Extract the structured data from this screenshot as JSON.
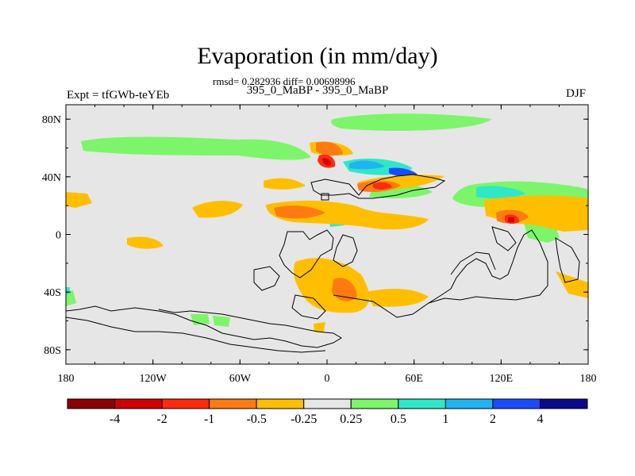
{
  "chart_data": {
    "type": "map",
    "title": "Evaporation (in mm/day)",
    "stats_text": "rmsd= 0.282936 diff= 0.00698996",
    "subtitle": "395_0_MaBP - 395_0_MaBP",
    "left_label": "Expt = tfGWb-teYEb",
    "right_label": "DJF",
    "x_ticks": [
      "180",
      "120W",
      "60W",
      "0",
      "60E",
      "120E",
      "180"
    ],
    "y_ticks": [
      "80N",
      "40N",
      "0",
      "40S",
      "80S"
    ],
    "colorbar": {
      "levels": [
        "-4",
        "-2",
        "-1",
        "-0.5",
        "-0.25",
        "0.25",
        "0.5",
        "1",
        "2",
        "4"
      ],
      "colors": [
        "#8b0000",
        "#d00000",
        "#ff2a10",
        "#ff7a10",
        "#ffbf00",
        "#e6e6e6",
        "#7cf56a",
        "#2ee8c8",
        "#20b4f0",
        "#1a4cff",
        "#0a0a8c"
      ]
    }
  }
}
